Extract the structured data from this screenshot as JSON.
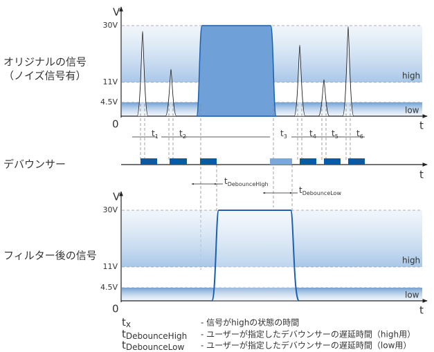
{
  "labels": {
    "original": "オリジナルの信号",
    "original_note": "（ノイズ信号有）",
    "debouncer": "デバウンサー",
    "filtered": "フィルター後の信号"
  },
  "original_chart": {
    "axis_v": "V",
    "axis_t": "t",
    "origin": "0",
    "levels": [
      "30V",
      "11V",
      "4.5V"
    ],
    "high": "high",
    "low": "low",
    "intervals": [
      {
        "t": "t",
        "sub": "1"
      },
      {
        "t": "t",
        "sub": "2"
      },
      {
        "t": "t",
        "sub": "3"
      },
      {
        "t": "t",
        "sub": "4"
      },
      {
        "t": "t",
        "sub": "5"
      },
      {
        "t": "t",
        "sub": "6"
      }
    ]
  },
  "debouncer_chart": {
    "axis_t": "t",
    "delays": [
      {
        "t": "t",
        "sub": "DebounceHigh"
      },
      {
        "t": "t",
        "sub": "DebounceLow"
      }
    ]
  },
  "filtered_chart": {
    "axis_v": "V",
    "axis_t": "t",
    "origin": "0",
    "levels": [
      "30V",
      "11V",
      "4.5V"
    ],
    "high": "high",
    "low": "low"
  },
  "legend": [
    {
      "symbol": "t",
      "sub": "x",
      "text": "- 信号がhighの状態の時間"
    },
    {
      "symbol": "t",
      "sub": "DebounceHigh",
      "text": "- ユーザーが指定したデバウンサーの遅延時間（high用）"
    },
    {
      "symbol": "t",
      "sub": "DebounceLow",
      "text": "- ユーザーが指定したデバウンサーの遅延時間（low用）"
    }
  ]
}
